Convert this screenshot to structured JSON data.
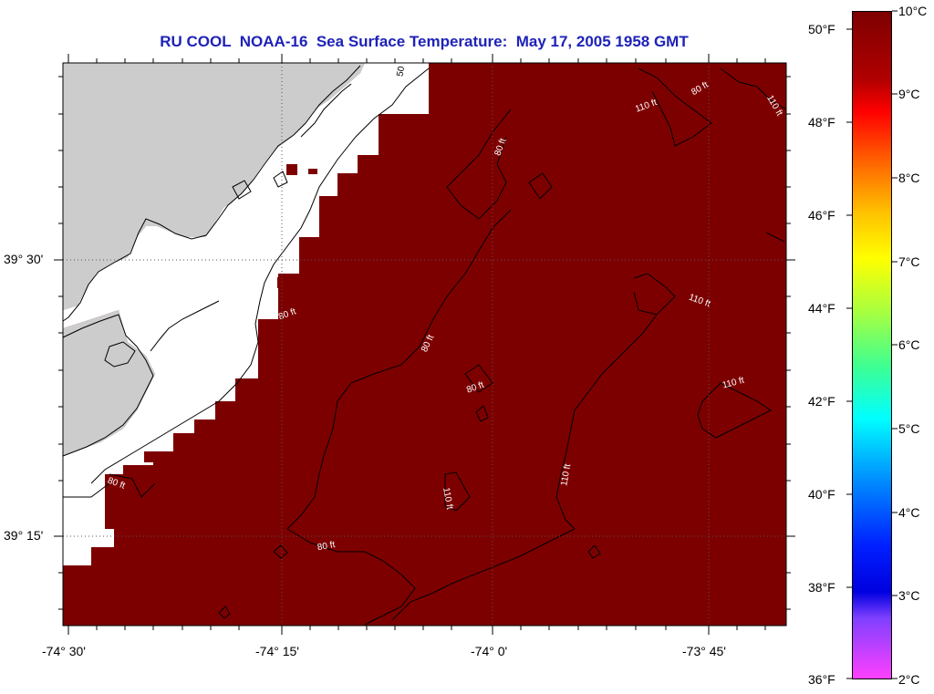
{
  "title": "RU COOL  NOAA-16  Sea Surface Temperature:  May 17, 2005 1958 GMT",
  "map": {
    "lat_labels": [
      "39° 30'",
      "39° 15'"
    ],
    "lon_labels": [
      "-74° 30'",
      "-74° 15'",
      "-74° 0'",
      "-73° 45'"
    ],
    "contour_labels": [
      "50",
      "80 ft",
      "110 ft",
      "110 ft",
      "80 ft",
      "80 ft",
      "80 ft",
      "110 ft",
      "110 ft",
      "110 ft",
      "80 ft",
      "110 ft",
      "80 ft",
      "80 ft"
    ],
    "colors": {
      "sea": "#7d0000",
      "land": "#cccccc",
      "cloud": "#ffffff",
      "title": "#1e22b8"
    }
  },
  "colorbar": {
    "fahrenheit_labels": [
      "50°F",
      "48°F",
      "46°F",
      "44°F",
      "42°F",
      "40°F",
      "38°F",
      "36°F"
    ],
    "celsius_labels": [
      "10°C",
      "9°C",
      "8°C",
      "7°C",
      "6°C",
      "5°C",
      "4°C",
      "3°C",
      "2°C"
    ]
  }
}
